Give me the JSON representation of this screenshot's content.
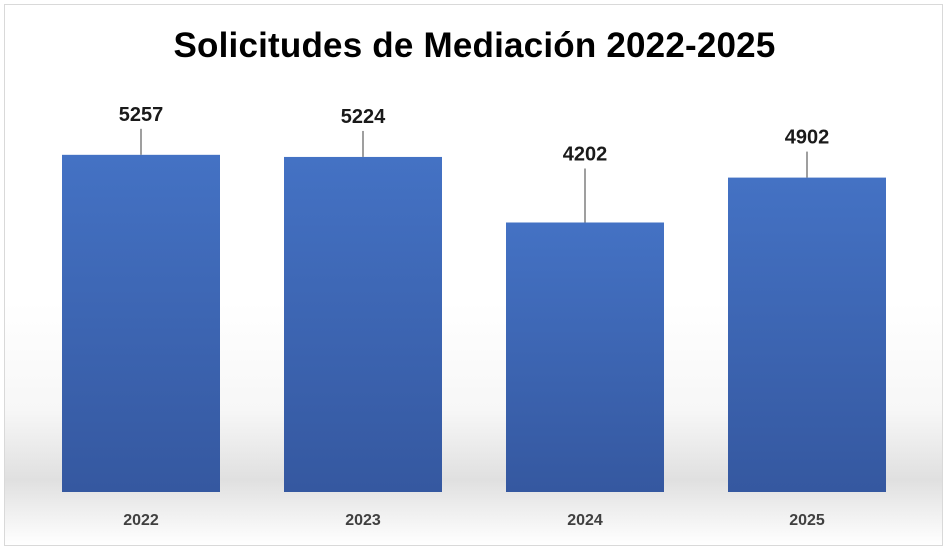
{
  "chart_data": {
    "type": "bar",
    "title": "Solicitudes de Mediación 2022-2025",
    "categories": [
      "2022",
      "2023",
      "2024",
      "2025"
    ],
    "values": [
      5257,
      5224,
      4202,
      4902
    ],
    "xlabel": "",
    "ylabel": "",
    "ylim": [
      0,
      5800
    ],
    "grid": false,
    "legend": "none",
    "bar_color": "#3a65b8"
  }
}
